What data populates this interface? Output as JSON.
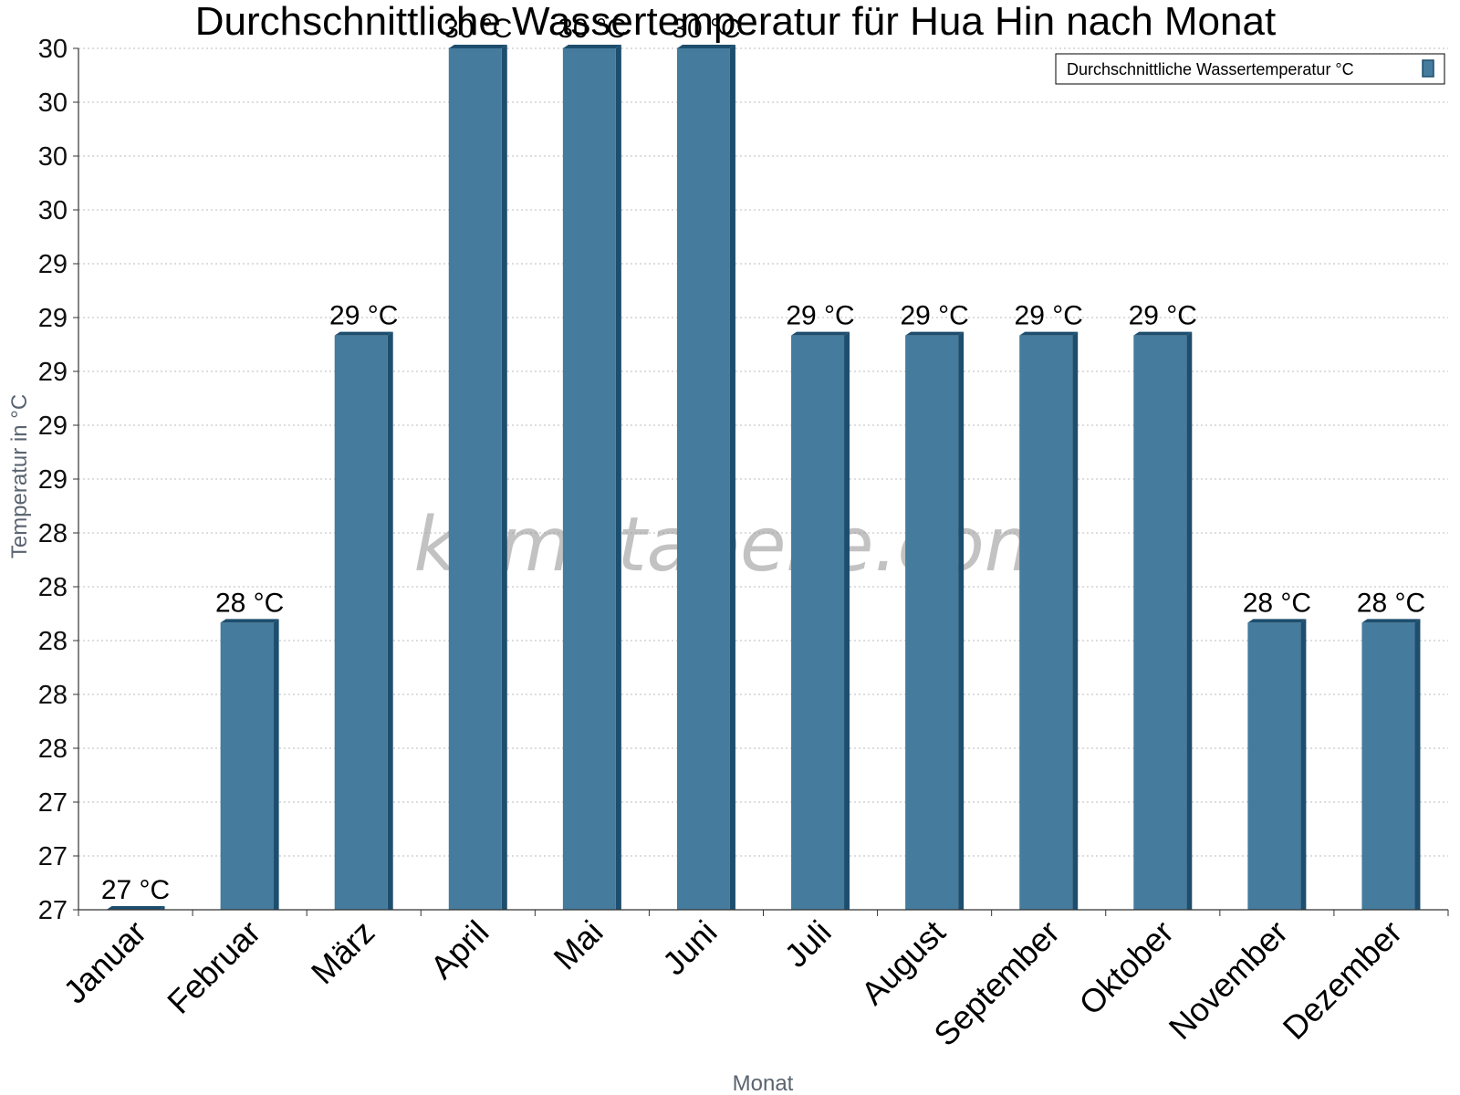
{
  "chart_data": {
    "type": "bar",
    "title": "Durchschnittliche Wassertemperatur für Hua Hin nach Monat",
    "xlabel": "Monat",
    "ylabel": "Temperatur in °C",
    "categories": [
      "Januar",
      "Februar",
      "März",
      "April",
      "Mai",
      "Juni",
      "Juli",
      "August",
      "September",
      "Oktober",
      "November",
      "Dezember"
    ],
    "series": [
      {
        "name": "Durchschnittliche Wassertemperatur °C",
        "values": [
          27,
          28,
          29,
          30,
          30,
          30,
          29,
          29,
          29,
          29,
          28,
          28
        ],
        "labels": [
          "27 °C",
          "28 °C",
          "29 °C",
          "30 °C",
          "30 °C",
          "30 °C",
          "29 °C",
          "29 °C",
          "29 °C",
          "29 °C",
          "28 °C",
          "28 °C"
        ]
      }
    ],
    "yticks": [
      "30",
      "30",
      "30",
      "30",
      "29",
      "29",
      "29",
      "29",
      "29",
      "28",
      "28",
      "28",
      "28",
      "28",
      "27",
      "27",
      "27"
    ],
    "ylim": [
      27,
      30
    ],
    "grid": true,
    "legend_position": "top-right",
    "colors": {
      "bar": "#457b9d",
      "bar_dark": "#1d4e6e",
      "grid": "#bbbbbb",
      "axis": "#333333"
    },
    "watermark": "klimatabelle.com"
  }
}
